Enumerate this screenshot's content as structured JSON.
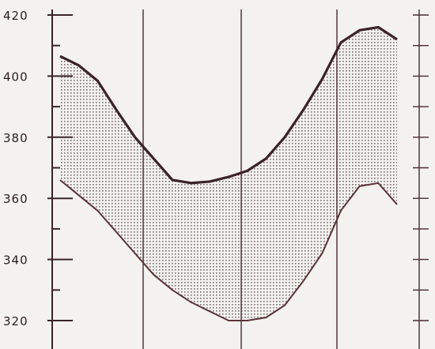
{
  "chart_data": {
    "type": "area",
    "title": "",
    "xlabel": "",
    "ylabel": "",
    "ylim": [
      320,
      420
    ],
    "y_ticks": [
      "320",
      "340",
      "360",
      "380",
      "400",
      "420"
    ],
    "grid": "vertical",
    "x": [
      0,
      1,
      2,
      3,
      4,
      5,
      6,
      7,
      8,
      9,
      10,
      11,
      12,
      13,
      14,
      15,
      16,
      17,
      18
    ],
    "series": [
      {
        "values": [
          406.5,
          403.5,
          398.5,
          389,
          380,
          373,
          366,
          365,
          365.5,
          367,
          369,
          373,
          380,
          389,
          399,
          411,
          415,
          416,
          412
        ]
      },
      {
        "values": [
          366,
          361,
          356,
          349,
          342,
          335,
          330,
          326,
          323,
          320,
          320,
          321,
          325,
          333,
          342,
          356,
          364,
          365,
          358
        ]
      }
    ],
    "colors": {
      "background": "#f3f2ee",
      "upper_line": "#3b2326",
      "lower_line": "#5a3236",
      "fill_dots": "#7a6b6c",
      "grid": "#4a2a2e",
      "axis": "#3a2426",
      "text": "#2b1e1e"
    }
  }
}
